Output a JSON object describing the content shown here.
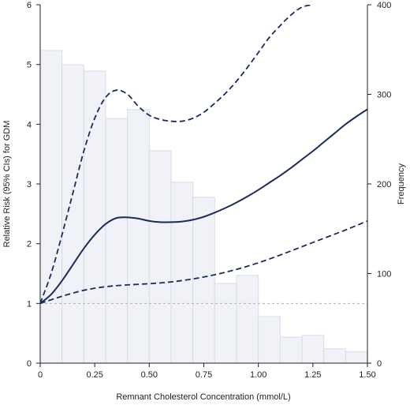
{
  "chart_data": {
    "type": "line",
    "title": "",
    "xlabel": "Remnant Cholesterol Concentration (mmol/L)",
    "ylabel": "Relative Risk (95% CIs) for GDM",
    "y2label": "Frequency",
    "xlim": [
      0,
      1.5
    ],
    "ylim": [
      0,
      6
    ],
    "y2lim": [
      0,
      400
    ],
    "x_ticks": [
      "0",
      "0.25",
      "0.50",
      "0.75",
      "1.00",
      "1.25",
      "1.50"
    ],
    "x_tick_values": [
      0,
      0.25,
      0.5,
      0.75,
      1.0,
      1.25,
      1.5
    ],
    "y_ticks": [
      "0",
      "1",
      "2",
      "3",
      "4",
      "5",
      "6"
    ],
    "y2_ticks": [
      "0",
      "100",
      "200",
      "300",
      "400"
    ],
    "reference_line": 1,
    "histogram": {
      "bin_width": 0.1,
      "bin_starts": [
        0.0,
        0.1,
        0.2,
        0.3,
        0.4,
        0.5,
        0.6,
        0.7,
        0.8,
        0.9,
        1.0,
        1.1,
        1.2,
        1.3,
        1.4
      ],
      "frequency": [
        349,
        333,
        326,
        273,
        283,
        237,
        202,
        185,
        89,
        98,
        52,
        29,
        31,
        16,
        13
      ]
    },
    "series": [
      {
        "style": "solid",
        "x": [
          0,
          0.05,
          0.1,
          0.15,
          0.2,
          0.25,
          0.3,
          0.35,
          0.4,
          0.45,
          0.5,
          0.55,
          0.6,
          0.65,
          0.7,
          0.75,
          0.8,
          0.85,
          0.9,
          0.95,
          1.0,
          1.05,
          1.1,
          1.15,
          1.2,
          1.25,
          1.3,
          1.35,
          1.4,
          1.45,
          1.5
        ],
        "values": [
          1.0,
          1.15,
          1.38,
          1.65,
          1.92,
          2.15,
          2.33,
          2.43,
          2.44,
          2.42,
          2.38,
          2.36,
          2.36,
          2.37,
          2.4,
          2.45,
          2.52,
          2.6,
          2.69,
          2.79,
          2.9,
          3.02,
          3.14,
          3.27,
          3.41,
          3.55,
          3.7,
          3.85,
          4.0,
          4.13,
          4.25
        ]
      },
      {
        "style": "dashed",
        "x": [
          0,
          0.05,
          0.1,
          0.15,
          0.2,
          0.25,
          0.3,
          0.35,
          0.4,
          0.45,
          0.5,
          0.55,
          0.6,
          0.65,
          0.7,
          0.75,
          0.8,
          0.85,
          0.9,
          0.95,
          1.0,
          1.05,
          1.1,
          1.15,
          1.2,
          1.25
        ],
        "values": [
          1.0,
          1.5,
          2.15,
          2.85,
          3.55,
          4.1,
          4.45,
          4.57,
          4.5,
          4.3,
          4.15,
          4.08,
          4.05,
          4.05,
          4.1,
          4.2,
          4.35,
          4.52,
          4.72,
          4.95,
          5.2,
          5.45,
          5.65,
          5.83,
          5.96,
          6.0
        ]
      },
      {
        "style": "dashed",
        "x": [
          0,
          0.1,
          0.2,
          0.3,
          0.4,
          0.5,
          0.6,
          0.7,
          0.8,
          0.9,
          1.0,
          1.1,
          1.2,
          1.3,
          1.4,
          1.5
        ],
        "values": [
          1.0,
          1.12,
          1.22,
          1.28,
          1.31,
          1.33,
          1.36,
          1.41,
          1.48,
          1.57,
          1.68,
          1.81,
          1.95,
          2.09,
          2.23,
          2.38
        ]
      }
    ],
    "colors": {
      "line": "#1a2b5e",
      "bar_fill": "#f0f2f8",
      "bar_stroke": "#d8dce8",
      "reference": "#b0b0b0"
    }
  }
}
